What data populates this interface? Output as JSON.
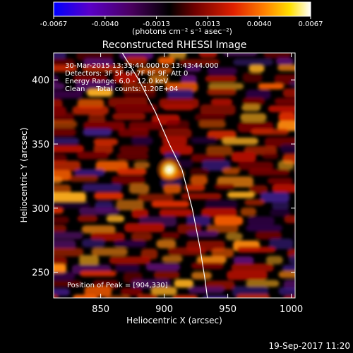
{
  "chart_data": {
    "type": "heatmap",
    "title": "Reconstructed RHESSI Image",
    "xlabel": "Heliocentric X (arcsec)",
    "ylabel": "Heliocentric Y (arcsec)",
    "xlim": [
      813,
      1003
    ],
    "ylim": [
      230,
      421
    ],
    "x_ticks": [
      850,
      900,
      950,
      1000
    ],
    "y_ticks": [
      250,
      300,
      350,
      400
    ],
    "colorbar": {
      "min": -0.0067,
      "max": 0.0067,
      "ticks": [
        "-0.0067",
        "-0.0040",
        "-0.0013",
        "0.0013",
        "0.0040",
        "0.0067"
      ],
      "units_label": "(photons cm⁻² s⁻¹ asec⁻²)",
      "colormap": [
        "#0000ff",
        "#5a00c8",
        "#4a0060",
        "#000000",
        "#700000",
        "#e02000",
        "#ff8000",
        "#ffe000",
        "#ffffff"
      ]
    },
    "annotations": [
      "30-Mar-2015 13:33:44.000 to 13:43:44.000",
      "Detectors: 3F 5F 6F 7F 8F 9F, Att 0",
      "Energy Range: 6.0 - 12.0 keV",
      "Clean     Total counts: 1.20E+04"
    ],
    "peak_label": "Position of Peak = [904,330]",
    "peak": {
      "x": 904,
      "y": 330
    },
    "limb_curve": [
      [
        867,
        421
      ],
      [
        880,
        400
      ],
      [
        893,
        375
      ],
      [
        904,
        350
      ],
      [
        914,
        330
      ],
      [
        922,
        300
      ],
      [
        928,
        270
      ],
      [
        932,
        245
      ],
      [
        934,
        230
      ]
    ]
  },
  "footer": {
    "timestamp": "19-Sep-2017 11:20"
  }
}
